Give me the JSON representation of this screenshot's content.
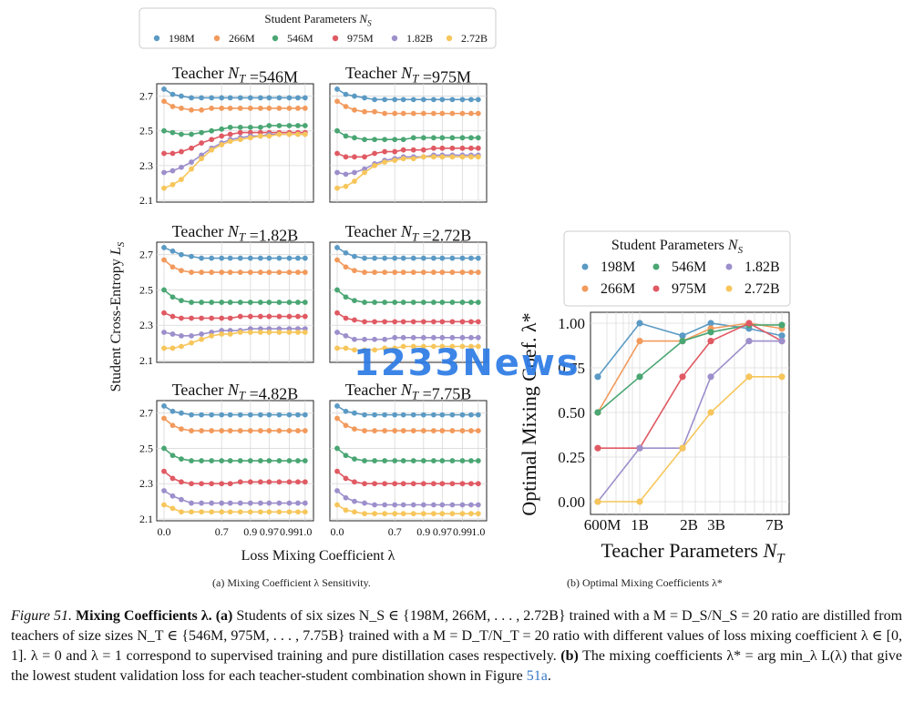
{
  "legend_a": {
    "title": "Student Parameters N_S",
    "entries": [
      "198M",
      "266M",
      "546M",
      "975M",
      "1.82B",
      "2.72B"
    ]
  },
  "legend_b": {
    "title": "Student Parameters N_S",
    "entries": [
      "198M",
      "546M",
      "1.82B",
      "266M",
      "975M",
      "2.72B"
    ]
  },
  "colors": {
    "198M": "#5b9ac4",
    "266M": "#f29a5c",
    "546M": "#4aa673",
    "975M": "#e05a63",
    "1.82B": "#9d8fcb",
    "2.72B": "#f7c65b"
  },
  "panel_a": {
    "ylabel": "Student Cross-Entropy L_S",
    "xlabel": "Loss Mixing Coefficient λ",
    "yticks": [
      "2.7",
      "2.5",
      "2.3",
      "2.1"
    ],
    "xtick_labels": [
      "0.0",
      "0.7",
      "0.9",
      "0.97",
      "0.99",
      "1.0"
    ],
    "caption": "(a) Mixing Coefficient λ Sensitivity."
  },
  "panel_b": {
    "ylabel": "Optimal Mixing Coef. λ*",
    "xlabel": "Teacher Parameters N_T",
    "yticks": [
      "1.00",
      "0.75",
      "0.50",
      "0.25",
      "0.00"
    ],
    "xtick_labels": [
      "600M",
      "1B",
      "2B",
      "3B",
      "7B"
    ],
    "caption": "(b) Optimal Mixing Coefficients λ*"
  },
  "caption": {
    "label": "Figure 51.",
    "title": "Mixing Coefficients λ.",
    "text_a_label": "(a)",
    "text_a": "Students of six sizes N_S ∈ {198M, 266M, . . . , 2.72B} trained with a M = D_S/N_S = 20 ratio are distilled from teachers of size sizes N_T ∈ {546M, 975M, . . . , 7.75B} trained with a M = D_T/N_T = 20 ratio with different values of loss mixing coefficient λ ∈ [0, 1]. λ = 0 and λ = 1 correspond to supervised training and pure distillation cases respectively.",
    "text_b_label": "(b)",
    "text_b": "The mixing coefficients λ* = arg min_λ L(λ) that give the lowest student validation loss for each teacher-student combination shown in Figure",
    "ref": "51a",
    "end": "."
  },
  "watermark": "1233News",
  "chart_data": [
    {
      "type": "line",
      "title": "Teacher N_T =546M",
      "x": [
        0.0,
        0.1,
        0.2,
        0.3,
        0.4,
        0.5,
        0.6,
        0.7,
        0.8,
        0.9,
        0.95,
        0.97,
        0.98,
        0.99,
        0.995,
        1.0
      ],
      "ylim": [
        2.1,
        2.75
      ],
      "series": [
        {
          "name": "198M",
          "values": [
            2.74,
            2.71,
            2.7,
            2.69,
            2.69,
            2.69,
            2.69,
            2.69,
            2.69,
            2.69,
            2.69,
            2.69,
            2.69,
            2.69,
            2.69,
            2.69
          ]
        },
        {
          "name": "266M",
          "values": [
            2.67,
            2.64,
            2.63,
            2.62,
            2.62,
            2.63,
            2.63,
            2.63,
            2.63,
            2.63,
            2.63,
            2.63,
            2.63,
            2.63,
            2.63,
            2.63
          ]
        },
        {
          "name": "546M",
          "values": [
            2.5,
            2.49,
            2.48,
            2.48,
            2.49,
            2.5,
            2.51,
            2.52,
            2.52,
            2.52,
            2.52,
            2.53,
            2.53,
            2.53,
            2.53,
            2.53
          ]
        },
        {
          "name": "975M",
          "values": [
            2.37,
            2.37,
            2.38,
            2.4,
            2.43,
            2.45,
            2.47,
            2.48,
            2.49,
            2.49,
            2.49,
            2.49,
            2.49,
            2.49,
            2.49,
            2.49
          ]
        },
        {
          "name": "1.82B",
          "values": [
            2.26,
            2.27,
            2.29,
            2.32,
            2.36,
            2.4,
            2.43,
            2.45,
            2.46,
            2.47,
            2.47,
            2.48,
            2.48,
            2.48,
            2.48,
            2.48
          ]
        },
        {
          "name": "2.72B",
          "values": [
            2.17,
            2.19,
            2.22,
            2.28,
            2.34,
            2.39,
            2.42,
            2.44,
            2.45,
            2.46,
            2.47,
            2.47,
            2.48,
            2.48,
            2.48,
            2.48
          ]
        }
      ]
    },
    {
      "type": "line",
      "title": "Teacher N_T =975M",
      "x": [
        0.0,
        0.1,
        0.2,
        0.3,
        0.4,
        0.5,
        0.6,
        0.7,
        0.8,
        0.9,
        0.95,
        0.97,
        0.98,
        0.99,
        0.995,
        1.0
      ],
      "ylim": [
        2.1,
        2.75
      ],
      "series": [
        {
          "name": "198M",
          "values": [
            2.74,
            2.71,
            2.7,
            2.69,
            2.68,
            2.68,
            2.68,
            2.68,
            2.68,
            2.68,
            2.68,
            2.68,
            2.68,
            2.68,
            2.68,
            2.68
          ]
        },
        {
          "name": "266M",
          "values": [
            2.67,
            2.64,
            2.62,
            2.61,
            2.61,
            2.6,
            2.6,
            2.6,
            2.6,
            2.6,
            2.6,
            2.6,
            2.6,
            2.6,
            2.6,
            2.6
          ]
        },
        {
          "name": "546M",
          "values": [
            2.5,
            2.47,
            2.46,
            2.45,
            2.45,
            2.45,
            2.45,
            2.45,
            2.46,
            2.46,
            2.46,
            2.46,
            2.46,
            2.46,
            2.46,
            2.46
          ]
        },
        {
          "name": "975M",
          "values": [
            2.37,
            2.35,
            2.35,
            2.35,
            2.37,
            2.38,
            2.38,
            2.39,
            2.39,
            2.39,
            2.4,
            2.4,
            2.4,
            2.4,
            2.4,
            2.4
          ]
        },
        {
          "name": "1.82B",
          "values": [
            2.26,
            2.25,
            2.26,
            2.28,
            2.31,
            2.33,
            2.34,
            2.35,
            2.35,
            2.35,
            2.36,
            2.36,
            2.36,
            2.36,
            2.36,
            2.36
          ]
        },
        {
          "name": "2.72B",
          "values": [
            2.17,
            2.18,
            2.21,
            2.26,
            2.3,
            2.32,
            2.33,
            2.34,
            2.34,
            2.35,
            2.35,
            2.35,
            2.35,
            2.35,
            2.35,
            2.35
          ]
        }
      ]
    },
    {
      "type": "line",
      "title": "Teacher N_T =1.82B",
      "x": [
        0.0,
        0.1,
        0.2,
        0.3,
        0.4,
        0.5,
        0.6,
        0.7,
        0.8,
        0.9,
        0.95,
        0.97,
        0.98,
        0.99,
        0.995,
        1.0
      ],
      "ylim": [
        2.1,
        2.75
      ],
      "series": [
        {
          "name": "198M",
          "values": [
            2.74,
            2.72,
            2.7,
            2.69,
            2.68,
            2.68,
            2.68,
            2.68,
            2.68,
            2.68,
            2.68,
            2.68,
            2.68,
            2.68,
            2.68,
            2.68
          ]
        },
        {
          "name": "266M",
          "values": [
            2.67,
            2.63,
            2.61,
            2.6,
            2.6,
            2.6,
            2.6,
            2.6,
            2.6,
            2.6,
            2.6,
            2.6,
            2.6,
            2.6,
            2.6,
            2.6
          ]
        },
        {
          "name": "546M",
          "values": [
            2.5,
            2.46,
            2.44,
            2.43,
            2.43,
            2.43,
            2.43,
            2.43,
            2.43,
            2.43,
            2.43,
            2.43,
            2.43,
            2.43,
            2.43,
            2.43
          ]
        },
        {
          "name": "975M",
          "values": [
            2.37,
            2.35,
            2.34,
            2.34,
            2.34,
            2.34,
            2.34,
            2.34,
            2.35,
            2.35,
            2.35,
            2.35,
            2.35,
            2.35,
            2.35,
            2.35
          ]
        },
        {
          "name": "1.82B",
          "values": [
            2.26,
            2.25,
            2.24,
            2.24,
            2.25,
            2.26,
            2.27,
            2.27,
            2.27,
            2.28,
            2.28,
            2.28,
            2.28,
            2.28,
            2.28,
            2.28
          ]
        },
        {
          "name": "2.72B",
          "values": [
            2.17,
            2.17,
            2.18,
            2.2,
            2.22,
            2.24,
            2.25,
            2.25,
            2.26,
            2.26,
            2.26,
            2.26,
            2.26,
            2.26,
            2.26,
            2.26
          ]
        }
      ]
    },
    {
      "type": "line",
      "title": "Teacher N_T =2.72B",
      "x": [
        0.0,
        0.1,
        0.2,
        0.3,
        0.4,
        0.5,
        0.6,
        0.7,
        0.8,
        0.9,
        0.95,
        0.97,
        0.98,
        0.99,
        0.995,
        1.0
      ],
      "ylim": [
        2.1,
        2.75
      ],
      "series": [
        {
          "name": "198M",
          "values": [
            2.74,
            2.71,
            2.69,
            2.68,
            2.68,
            2.68,
            2.68,
            2.68,
            2.68,
            2.68,
            2.68,
            2.68,
            2.68,
            2.68,
            2.68,
            2.68
          ]
        },
        {
          "name": "266M",
          "values": [
            2.67,
            2.63,
            2.61,
            2.6,
            2.6,
            2.6,
            2.6,
            2.6,
            2.6,
            2.6,
            2.6,
            2.6,
            2.6,
            2.6,
            2.6,
            2.6
          ]
        },
        {
          "name": "546M",
          "values": [
            2.5,
            2.46,
            2.44,
            2.43,
            2.43,
            2.43,
            2.43,
            2.43,
            2.43,
            2.43,
            2.43,
            2.43,
            2.43,
            2.43,
            2.43,
            2.43
          ]
        },
        {
          "name": "975M",
          "values": [
            2.37,
            2.34,
            2.33,
            2.32,
            2.32,
            2.32,
            2.32,
            2.32,
            2.32,
            2.32,
            2.32,
            2.32,
            2.32,
            2.32,
            2.32,
            2.32
          ]
        },
        {
          "name": "1.82B",
          "values": [
            2.26,
            2.24,
            2.22,
            2.22,
            2.22,
            2.22,
            2.23,
            2.23,
            2.23,
            2.23,
            2.23,
            2.23,
            2.23,
            2.23,
            2.23,
            2.23
          ]
        },
        {
          "name": "2.72B",
          "values": [
            2.17,
            2.17,
            2.16,
            2.16,
            2.16,
            2.17,
            2.17,
            2.18,
            2.18,
            2.18,
            2.18,
            2.18,
            2.18,
            2.18,
            2.18,
            2.18
          ]
        }
      ]
    },
    {
      "type": "line",
      "title": "Teacher N_T =4.82B",
      "x": [
        0.0,
        0.1,
        0.2,
        0.3,
        0.4,
        0.5,
        0.6,
        0.7,
        0.8,
        0.9,
        0.95,
        0.97,
        0.98,
        0.99,
        0.995,
        1.0
      ],
      "ylim": [
        2.1,
        2.75
      ],
      "series": [
        {
          "name": "198M",
          "values": [
            2.74,
            2.71,
            2.7,
            2.69,
            2.69,
            2.69,
            2.69,
            2.69,
            2.69,
            2.69,
            2.69,
            2.69,
            2.69,
            2.69,
            2.69,
            2.69
          ]
        },
        {
          "name": "266M",
          "values": [
            2.67,
            2.63,
            2.61,
            2.6,
            2.6,
            2.6,
            2.6,
            2.6,
            2.6,
            2.6,
            2.6,
            2.6,
            2.6,
            2.6,
            2.6,
            2.6
          ]
        },
        {
          "name": "546M",
          "values": [
            2.5,
            2.46,
            2.44,
            2.43,
            2.43,
            2.43,
            2.43,
            2.43,
            2.43,
            2.43,
            2.43,
            2.43,
            2.43,
            2.43,
            2.43,
            2.43
          ]
        },
        {
          "name": "975M",
          "values": [
            2.37,
            2.33,
            2.31,
            2.3,
            2.3,
            2.3,
            2.3,
            2.3,
            2.31,
            2.31,
            2.31,
            2.31,
            2.31,
            2.31,
            2.31,
            2.31
          ]
        },
        {
          "name": "1.82B",
          "values": [
            2.26,
            2.23,
            2.21,
            2.19,
            2.19,
            2.19,
            2.19,
            2.19,
            2.19,
            2.19,
            2.19,
            2.19,
            2.19,
            2.19,
            2.19,
            2.19
          ]
        },
        {
          "name": "2.72B",
          "values": [
            2.18,
            2.16,
            2.14,
            2.14,
            2.14,
            2.14,
            2.14,
            2.14,
            2.14,
            2.14,
            2.14,
            2.14,
            2.14,
            2.14,
            2.14,
            2.14
          ]
        }
      ]
    },
    {
      "type": "line",
      "title": "Teacher N_T =7.75B",
      "x": [
        0.0,
        0.1,
        0.2,
        0.3,
        0.4,
        0.5,
        0.6,
        0.7,
        0.8,
        0.9,
        0.95,
        0.97,
        0.98,
        0.99,
        0.995,
        1.0
      ],
      "ylim": [
        2.1,
        2.75
      ],
      "series": [
        {
          "name": "198M",
          "values": [
            2.74,
            2.71,
            2.7,
            2.69,
            2.69,
            2.69,
            2.69,
            2.69,
            2.69,
            2.69,
            2.69,
            2.69,
            2.69,
            2.69,
            2.69,
            2.69
          ]
        },
        {
          "name": "266M",
          "values": [
            2.67,
            2.63,
            2.61,
            2.6,
            2.6,
            2.6,
            2.6,
            2.6,
            2.6,
            2.6,
            2.6,
            2.6,
            2.6,
            2.6,
            2.6,
            2.6
          ]
        },
        {
          "name": "546M",
          "values": [
            2.5,
            2.46,
            2.44,
            2.43,
            2.43,
            2.43,
            2.43,
            2.43,
            2.43,
            2.43,
            2.43,
            2.43,
            2.43,
            2.43,
            2.43,
            2.43
          ]
        },
        {
          "name": "975M",
          "values": [
            2.37,
            2.33,
            2.31,
            2.3,
            2.3,
            2.3,
            2.3,
            2.3,
            2.3,
            2.3,
            2.3,
            2.3,
            2.3,
            2.3,
            2.3,
            2.3
          ]
        },
        {
          "name": "1.82B",
          "values": [
            2.26,
            2.22,
            2.2,
            2.19,
            2.18,
            2.18,
            2.18,
            2.18,
            2.18,
            2.18,
            2.18,
            2.18,
            2.18,
            2.18,
            2.18,
            2.18
          ]
        },
        {
          "name": "2.72B",
          "values": [
            2.18,
            2.15,
            2.14,
            2.13,
            2.13,
            2.13,
            2.13,
            2.13,
            2.13,
            2.13,
            2.13,
            2.13,
            2.13,
            2.13,
            2.13,
            2.13
          ]
        }
      ]
    },
    {
      "type": "line",
      "title": "",
      "xlabel": "Teacher Parameters N_T",
      "ylabel": "Optimal Mixing Coef. λ*",
      "x": [
        "546M",
        "975M",
        "1.82B",
        "2.72B",
        "4.82B",
        "7.75B"
      ],
      "ylim": [
        0,
        1
      ],
      "series": [
        {
          "name": "198M",
          "values": [
            0.7,
            1.0,
            0.93,
            1.0,
            0.97,
            0.93
          ]
        },
        {
          "name": "266M",
          "values": [
            0.5,
            0.9,
            0.9,
            0.97,
            1.0,
            0.97
          ]
        },
        {
          "name": "546M",
          "values": [
            0.5,
            0.7,
            0.9,
            0.95,
            0.99,
            0.99
          ]
        },
        {
          "name": "975M",
          "values": [
            0.3,
            0.3,
            0.7,
            0.9,
            1.0,
            0.9
          ]
        },
        {
          "name": "1.82B",
          "values": [
            0.0,
            0.3,
            0.3,
            0.7,
            0.9,
            0.9
          ]
        },
        {
          "name": "2.72B",
          "values": [
            0.0,
            0.0,
            0.3,
            0.5,
            0.7,
            0.7
          ]
        }
      ]
    }
  ]
}
